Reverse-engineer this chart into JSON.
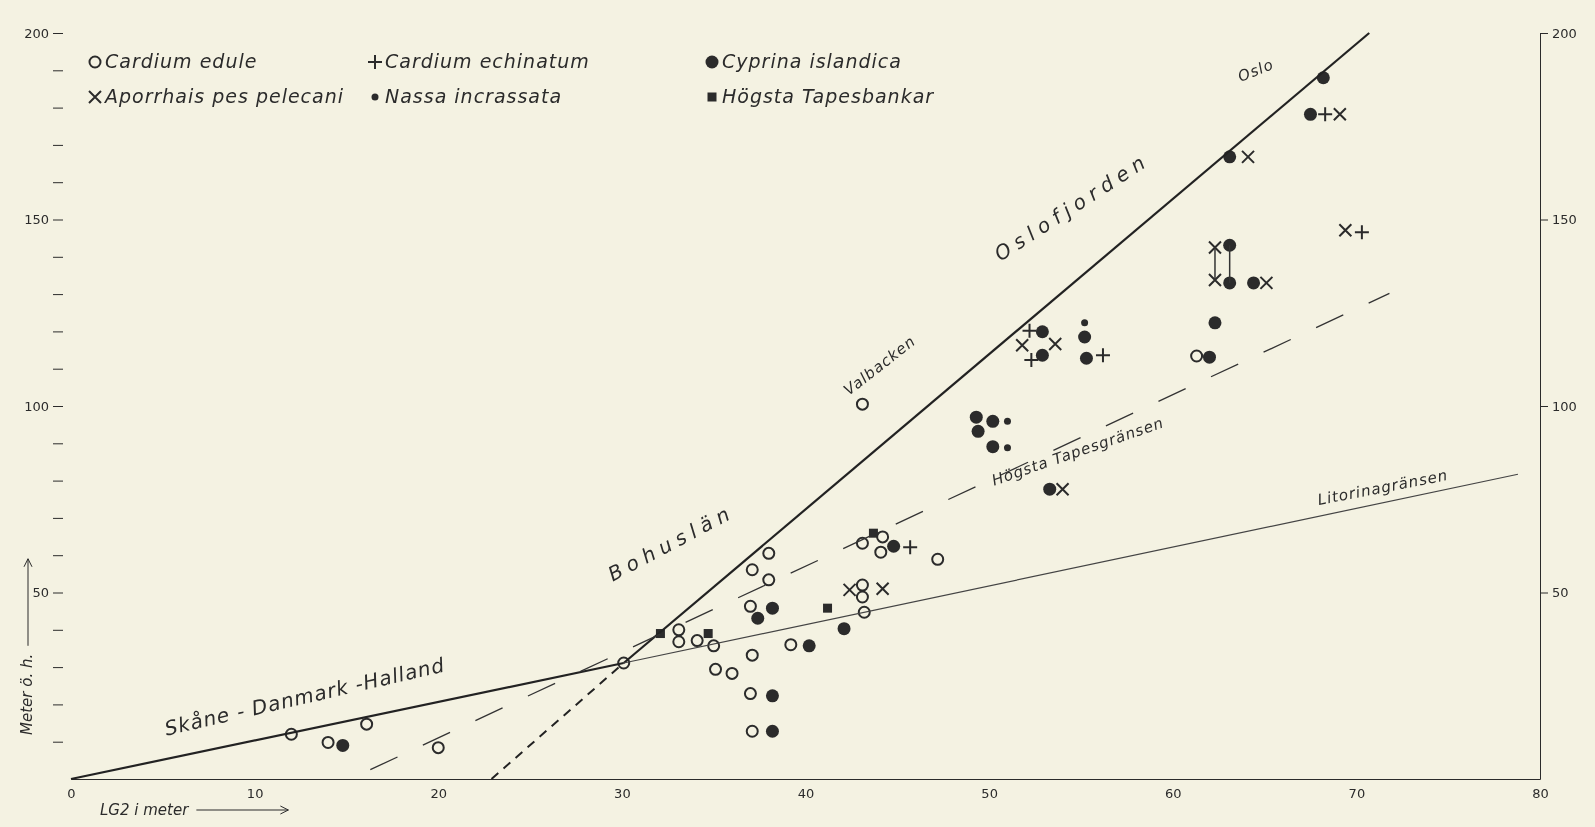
{
  "chart_data": {
    "type": "scatter",
    "xlabel": "LG2 i meter",
    "ylabel": "Meter ö. h.",
    "xlim": [
      0,
      80
    ],
    "xticks": [
      0,
      10,
      20,
      30,
      40,
      50,
      60,
      70,
      80
    ],
    "ylim": [
      0,
      200
    ],
    "yticks": [
      {
        "value": 10,
        "label": null
      },
      {
        "value": 20,
        "label": null
      },
      {
        "value": 30,
        "label": null
      },
      {
        "value": 40,
        "label": null
      },
      50,
      {
        "value": 60,
        "label": null
      },
      {
        "value": 70,
        "label": null
      },
      {
        "value": 80,
        "label": null
      },
      {
        "value": 90,
        "label": null
      },
      100,
      {
        "value": 110,
        "label": null
      },
      {
        "value": 120,
        "label": null
      },
      {
        "value": 130,
        "label": null
      },
      {
        "value": 140,
        "label": null
      },
      150,
      {
        "value": 160,
        "label": null
      },
      {
        "value": 170,
        "label": null
      },
      {
        "value": 180,
        "label": null
      },
      {
        "value": 190,
        "label": null
      },
      200
    ],
    "y2lim": [
      0,
      200
    ],
    "y2ticks": [
      50,
      100,
      150,
      200
    ],
    "legend": "top left",
    "grid": false,
    "series": [
      {
        "name": "Cardium edule",
        "marker": "circle-open",
        "color": "#2b2b2b",
        "x": [
          12.0,
          14.0,
          16.1,
          20.0,
          30.1,
          33.1,
          33.1,
          34.1,
          35.0,
          35.1,
          36.0,
          37.1,
          38.0,
          38.0,
          37.0,
          37.1,
          37.0,
          37.1,
          39.2,
          43.1,
          43.1,
          44.2,
          44.1,
          43.1,
          43.1,
          43.2,
          47.2,
          61.3
        ],
        "values": [
          12.0,
          9.8,
          14.7,
          8.4,
          31.1,
          40.0,
          36.8,
          37.1,
          35.7,
          29.4,
          28.3,
          56.1,
          60.5,
          53.4,
          46.3,
          33.2,
          22.9,
          12.8,
          36.0,
          100.5,
          63.2,
          64.9,
          60.8,
          52.0,
          48.8,
          44.7,
          58.9,
          113.4
        ]
      },
      {
        "name": "Cardium echinatum",
        "marker": "cross",
        "color": "#2b2b2b",
        "x": [
          45.7,
          52.2,
          52.3,
          56.2,
          68.3,
          70.3
        ],
        "values": [
          62.1,
          120.2,
          112.3,
          113.6,
          178.2,
          146.6
        ]
      },
      {
        "name": "Cyprina islandica",
        "marker": "circle",
        "color": "#2b2b2b",
        "x": [
          14.8,
          37.4,
          38.2,
          38.2,
          38.2,
          40.2,
          42.1,
          44.8,
          52.9,
          52.9,
          55.2,
          55.3,
          62.3,
          62.0,
          49.3,
          49.4,
          50.2,
          50.2,
          53.3,
          68.2,
          67.5,
          63.1,
          63.1,
          63.1,
          64.4
        ],
        "values": [
          9.0,
          43.1,
          45.8,
          22.3,
          12.8,
          35.7,
          40.3,
          62.4,
          119.9,
          113.6,
          118.5,
          112.8,
          122.3,
          113.1,
          97.0,
          93.2,
          95.9,
          89.1,
          77.7,
          188.0,
          178.2,
          166.8,
          143.1,
          133.0,
          133.0
        ]
      },
      {
        "name": "Aporrhais pes pelecani",
        "marker": "x",
        "color": "#2b2b2b",
        "x": [
          42.4,
          44.2,
          51.8,
          53.6,
          54.0,
          69.1,
          64.1,
          62.3,
          62.3,
          65.1,
          69.4
        ],
        "values": [
          50.7,
          51.0,
          116.3,
          116.6,
          77.7,
          178.2,
          166.8,
          142.5,
          133.8,
          133.0,
          147.1
        ]
      },
      {
        "name": "Nassa incrassata",
        "marker": "circle-small",
        "color": "#2b2b2b",
        "x": [
          55.2,
          51.0,
          51.0
        ],
        "values": [
          122.3,
          95.9,
          88.8
        ]
      },
      {
        "name": "Högsta Tapesbankar",
        "marker": "square",
        "color": "#2b2b2b",
        "x": [
          32.1,
          34.7,
          41.2,
          43.7
        ],
        "values": [
          39.0,
          39.0,
          45.8,
          65.9
        ]
      },
      {
        "type": "line",
        "line_style": "solid",
        "color": "#222222",
        "x": [
          0,
          30.1
        ],
        "values": [
          0,
          31.1
        ]
      },
      {
        "type": "line",
        "line_style": "solid",
        "color": "#222222",
        "x": [
          30.1,
          70.7
        ],
        "values": [
          31.1,
          200
        ]
      },
      {
        "type": "line",
        "line_style": "dashed",
        "color": "#222222",
        "x": [
          22.9,
          30.1
        ],
        "values": [
          0,
          31.1
        ]
      },
      {
        "type": "line",
        "line_style": "longdash",
        "color": "#333333",
        "x": [
          16.3,
          71.8
        ],
        "values": [
          2.5,
          130.2
        ]
      },
      {
        "type": "line",
        "line_style": "solid",
        "color": "#444444",
        "x": [
          30.1,
          78.8
        ],
        "values": [
          31.1,
          81.7
        ]
      },
      {
        "type": "line",
        "line_style": "solid",
        "color": "#333333",
        "x": [
          62.3,
          62.3
        ],
        "values": [
          142.5,
          133.8
        ]
      },
      {
        "type": "line",
        "line_style": "solid",
        "color": "#333333",
        "x": [
          63.1,
          63.1
        ],
        "values": [
          143.1,
          133.0
        ]
      }
    ],
    "annotations": [
      "Skåne - Danmark -Halland",
      "Bohuslän",
      "Oslofjorden",
      "Oslo",
      "Valbacken",
      "Högsta Tapesgränsen",
      "Litorinagränsen"
    ]
  }
}
